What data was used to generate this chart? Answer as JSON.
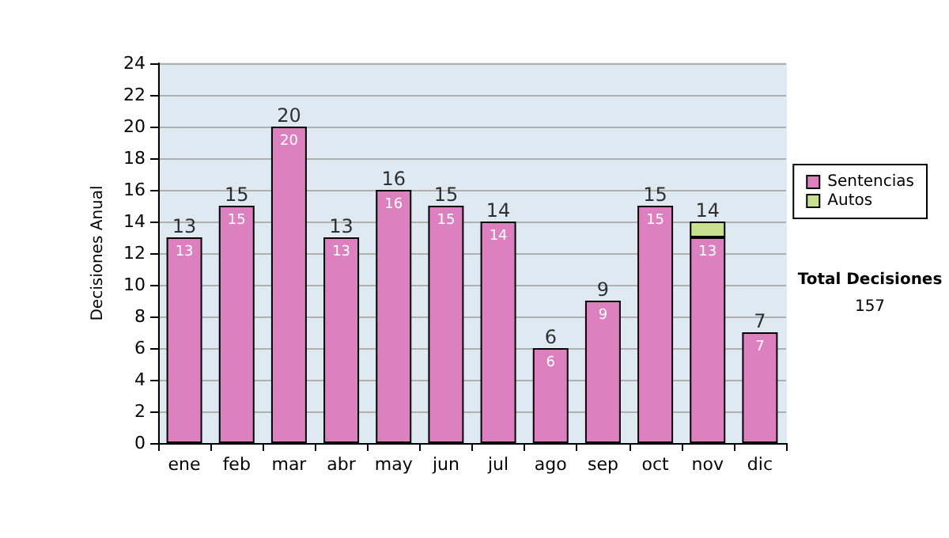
{
  "chart_data": {
    "type": "bar",
    "stacked": true,
    "ylabel": "Decisiones Anual",
    "categories": [
      "ene",
      "feb",
      "mar",
      "abr",
      "may",
      "jun",
      "jul",
      "ago",
      "sep",
      "oct",
      "nov",
      "dic"
    ],
    "series": [
      {
        "name": "Sentencias",
        "color": "#dd80c0",
        "values": [
          13,
          15,
          20,
          13,
          16,
          15,
          14,
          6,
          9,
          15,
          13,
          7
        ],
        "value_labels": [
          "13",
          "15",
          "20",
          "13",
          "16",
          "15",
          "14",
          "6",
          "9",
          "15",
          "13",
          "7"
        ]
      },
      {
        "name": "Autos",
        "color": "#c8e090",
        "values": [
          null,
          null,
          null,
          null,
          null,
          null,
          null,
          null,
          null,
          null,
          1,
          null
        ]
      }
    ],
    "totals": [
      "13",
      "15",
      "20",
      "13",
      "16",
      "15",
      "14",
      "6",
      "9",
      "15",
      "14",
      "7"
    ],
    "ylim": [
      0,
      24
    ],
    "yticks": [
      0,
      2,
      4,
      6,
      8,
      10,
      12,
      14,
      16,
      18,
      20,
      22,
      24
    ],
    "grid": "y",
    "legend": "right",
    "annotations": [
      "Total Decisiones",
      "157"
    ]
  }
}
